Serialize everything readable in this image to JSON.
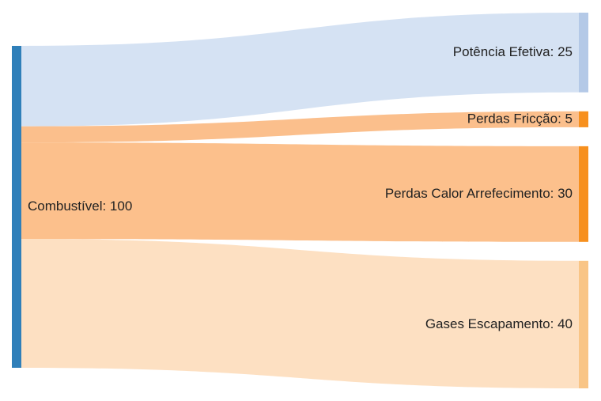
{
  "chart_data": {
    "type": "sankey",
    "title": "",
    "source": {
      "name": "Combustível",
      "value": 100,
      "label": "Combustível: 100",
      "color": "#2f7fb9"
    },
    "targets": [
      {
        "name": "Potência Efetiva",
        "value": 25,
        "label": "Potência Efetiva: 25",
        "node_color": "#b4c9e7",
        "link_color": "#d5e2f3"
      },
      {
        "name": "Perdas Fricção",
        "value": 5,
        "label": "Perdas Fricção: 5",
        "node_color": "#f7901e",
        "link_color": "#fbbf8c"
      },
      {
        "name": "Perdas Calor Arrefecimento",
        "value": 30,
        "label": "Perdas Calor Arrefecimento: 30",
        "node_color": "#f7901e",
        "link_color": "#fcc08c"
      },
      {
        "name": "Gases Escapamento",
        "value": 40,
        "label": "Gases Escapamento: 40",
        "node_color": "#f9c586",
        "link_color": "#fde0c2"
      }
    ]
  }
}
